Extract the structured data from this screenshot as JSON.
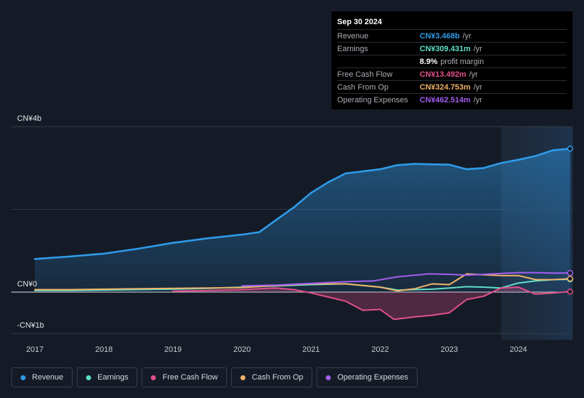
{
  "tooltip": {
    "date": "Sep 30 2024",
    "rows": [
      {
        "name": "Revenue",
        "value": "CN¥3.468b",
        "unit": "/yr",
        "color": "#2f9be9"
      },
      {
        "name": "Earnings",
        "value": "CN¥309.431m",
        "unit": "/yr",
        "color": "#5ee0c9"
      },
      {
        "name": "",
        "value": "8.9%",
        "unit": "profit margin",
        "color": "#ffffff"
      },
      {
        "name": "Free Cash Flow",
        "value": "CN¥13.492m",
        "unit": "/yr",
        "color": "#e2508a"
      },
      {
        "name": "Cash From Op",
        "value": "CN¥324.753m",
        "unit": "/yr",
        "color": "#f0b36a"
      },
      {
        "name": "Operating Expenses",
        "value": "CN¥462.514m",
        "unit": "/yr",
        "color": "#a35ef0"
      }
    ]
  },
  "legend": [
    {
      "label": "Revenue",
      "color": "#2f9be9"
    },
    {
      "label": "Earnings",
      "color": "#5ee0c9"
    },
    {
      "label": "Free Cash Flow",
      "color": "#e2508a"
    },
    {
      "label": "Cash From Op",
      "color": "#f0b36a"
    },
    {
      "label": "Operating Expenses",
      "color": "#a35ef0"
    }
  ],
  "chart_data": {
    "type": "line",
    "title": "",
    "xlabel": "",
    "ylabel": "",
    "unit": "CN¥ billions",
    "xlim": [
      2016.67,
      2024.75
    ],
    "ylim": [
      -1,
      4
    ],
    "y_tick_labels": [
      {
        "value": 4,
        "label": "CN¥4b"
      },
      {
        "value": 0,
        "label": "CN¥0"
      },
      {
        "value": -1,
        "label": "-CN¥1b"
      }
    ],
    "x_ticks": [
      {
        "value": 2017,
        "label": "2017"
      },
      {
        "value": 2018,
        "label": "2018"
      },
      {
        "value": 2019,
        "label": "2019"
      },
      {
        "value": 2020,
        "label": "2020"
      },
      {
        "value": 2021,
        "label": "2021"
      },
      {
        "value": 2022,
        "label": "2022"
      },
      {
        "value": 2023,
        "label": "2023"
      },
      {
        "value": 2024,
        "label": "2024"
      }
    ],
    "highlight_start": 2023.75,
    "series": [
      {
        "name": "Revenue",
        "color": "#2f9be9",
        "fill": true,
        "x": [
          2017,
          2017.5,
          2018,
          2018.5,
          2019,
          2019.5,
          2020,
          2020.25,
          2020.5,
          2020.75,
          2021,
          2021.25,
          2021.5,
          2021.75,
          2022,
          2022.25,
          2022.5,
          2022.75,
          2023,
          2023.25,
          2023.5,
          2023.75,
          2024,
          2024.25,
          2024.5,
          2024.75
        ],
        "values": [
          0.8,
          0.86,
          0.93,
          1.05,
          1.19,
          1.3,
          1.39,
          1.45,
          1.75,
          2.05,
          2.4,
          2.66,
          2.87,
          2.92,
          2.97,
          3.07,
          3.1,
          3.09,
          3.08,
          2.97,
          3.0,
          3.12,
          3.2,
          3.29,
          3.43,
          3.468
        ]
      },
      {
        "name": "Earnings",
        "color": "#5ee0c9",
        "fill": false,
        "x": [
          2017,
          2017.5,
          2018,
          2018.5,
          2019,
          2019.5,
          2020,
          2020.5,
          2021,
          2021.5,
          2022,
          2022.25,
          2022.5,
          2022.75,
          2023,
          2023.25,
          2023.5,
          2023.75,
          2024,
          2024.25,
          2024.5,
          2024.75
        ],
        "values": [
          0.04,
          0.04,
          0.05,
          0.06,
          0.07,
          0.09,
          0.12,
          0.15,
          0.18,
          0.2,
          0.12,
          0.05,
          0.06,
          0.07,
          0.1,
          0.13,
          0.12,
          0.1,
          0.22,
          0.27,
          0.3,
          0.309
        ]
      },
      {
        "name": "Free Cash Flow",
        "color": "#e2508a",
        "fill": true,
        "x": [
          2019,
          2019.5,
          2020,
          2020.25,
          2020.5,
          2020.75,
          2021,
          2021.25,
          2021.5,
          2021.75,
          2022,
          2022.2,
          2022.5,
          2022.75,
          2023,
          2023.25,
          2023.5,
          2023.75,
          2024,
          2024.25,
          2024.5,
          2024.75
        ],
        "values": [
          0.02,
          0.04,
          0.06,
          0.08,
          0.1,
          0.06,
          -0.02,
          -0.12,
          -0.22,
          -0.44,
          -0.42,
          -0.66,
          -0.6,
          -0.56,
          -0.5,
          -0.18,
          -0.1,
          0.1,
          0.12,
          -0.05,
          -0.02,
          0.013
        ]
      },
      {
        "name": "Cash From Op",
        "color": "#f0b36a",
        "fill": false,
        "x": [
          2017,
          2017.5,
          2018,
          2018.5,
          2019,
          2019.5,
          2020,
          2020.5,
          2021,
          2021.5,
          2022,
          2022.25,
          2022.5,
          2022.75,
          2023,
          2023.25,
          2023.5,
          2023.75,
          2024,
          2024.25,
          2024.5,
          2024.75
        ],
        "values": [
          0.06,
          0.06,
          0.07,
          0.08,
          0.09,
          0.1,
          0.11,
          0.16,
          0.2,
          0.2,
          0.12,
          0.03,
          0.08,
          0.2,
          0.18,
          0.44,
          0.42,
          0.4,
          0.4,
          0.3,
          0.3,
          0.325
        ]
      },
      {
        "name": "Operating Expenses",
        "color": "#a35ef0",
        "fill": false,
        "x": [
          2020,
          2020.5,
          2021,
          2021.5,
          2021.9,
          2022.25,
          2022.7,
          2023,
          2023.25,
          2023.5,
          2023.75,
          2024,
          2024.25,
          2024.5,
          2024.75
        ],
        "values": [
          0.15,
          0.17,
          0.21,
          0.25,
          0.27,
          0.37,
          0.44,
          0.43,
          0.41,
          0.43,
          0.45,
          0.47,
          0.47,
          0.46,
          0.462
        ]
      }
    ]
  }
}
